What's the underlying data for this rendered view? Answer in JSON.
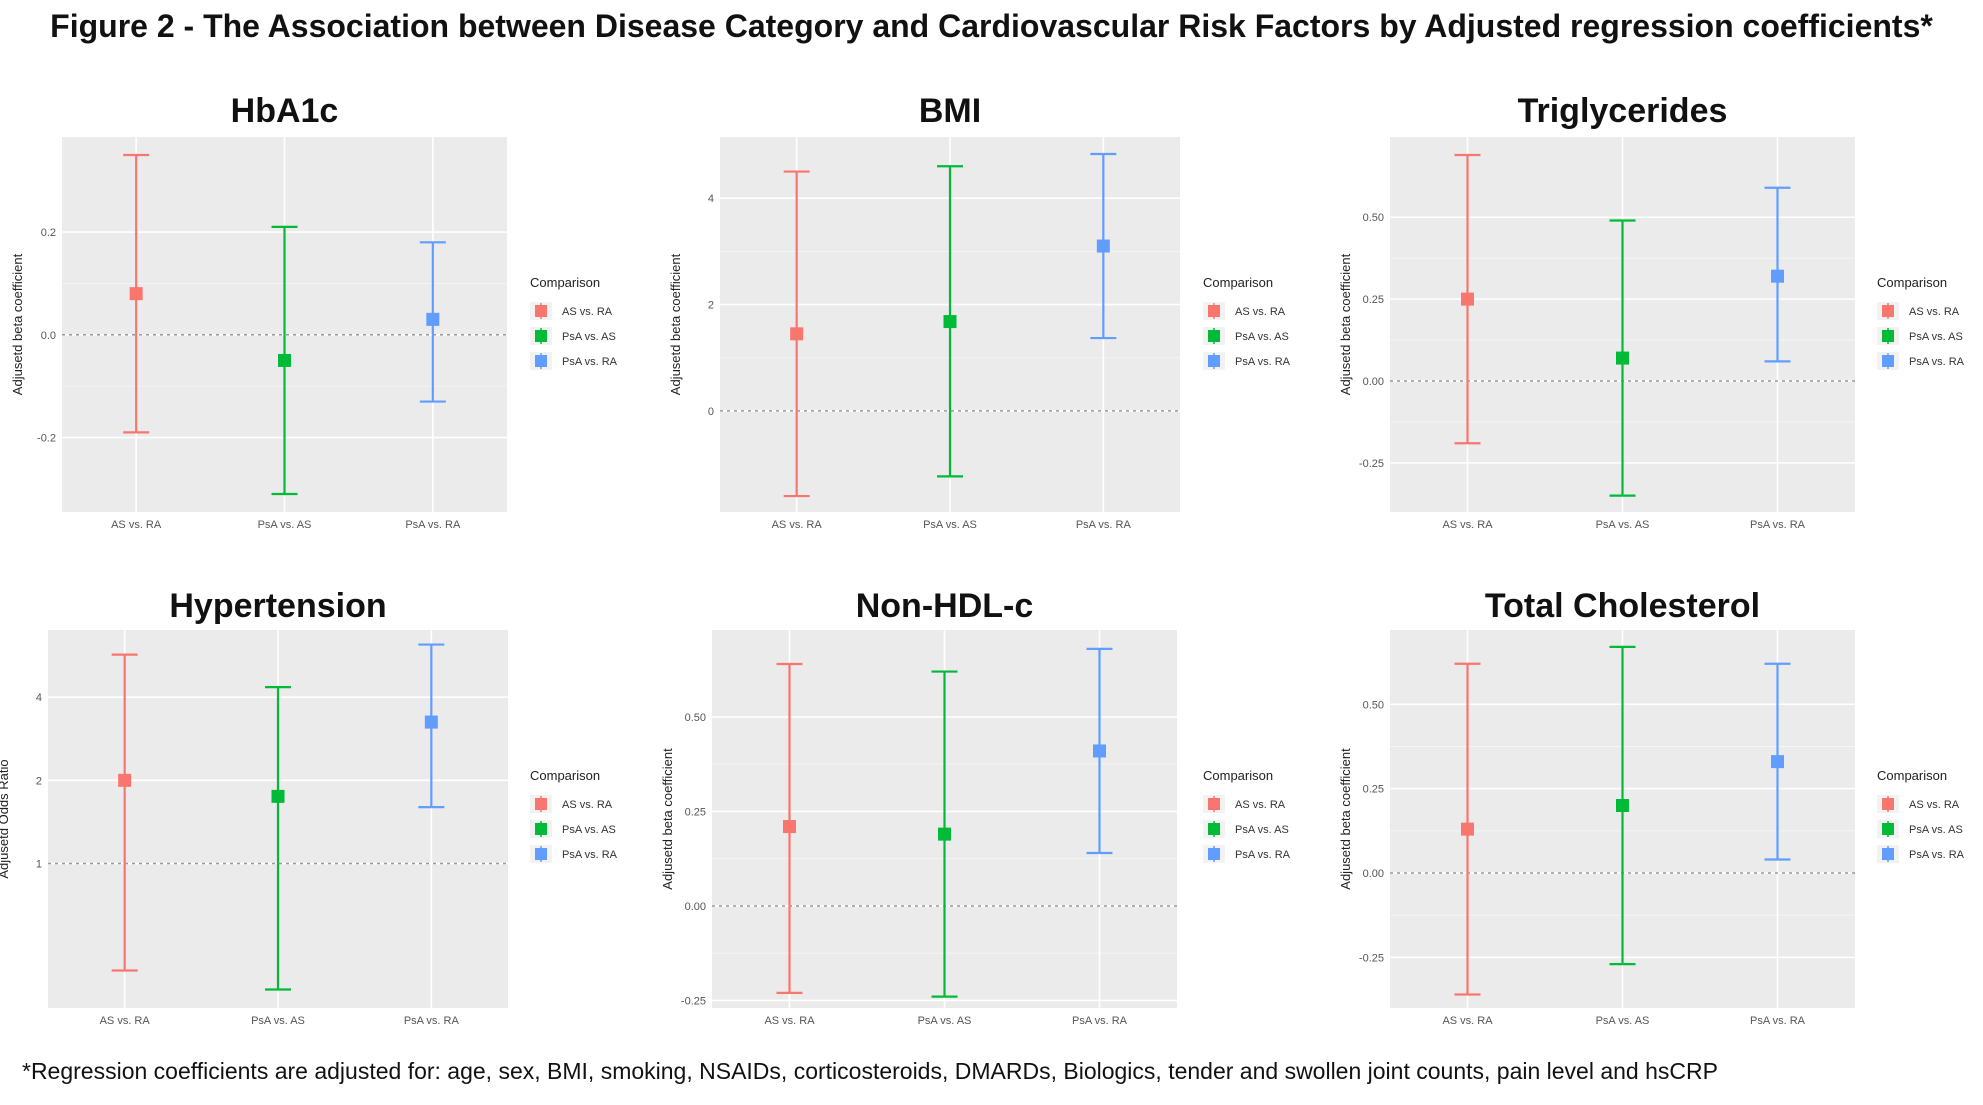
{
  "figure_title": "Figure 2 - The Association between Disease Category and Cardiovascular Risk Factors by Adjusted regression coefficients*",
  "footnote": "*Regression coefficients are adjusted for: age, sex, BMI, smoking, NSAIDs, corticosteroids, DMARDs, Biologics, tender and swollen joint counts, pain level and hsCRP",
  "colors": {
    "panel_bg": "#EBEBEB",
    "grid": "#FFFFFF",
    "reference_line": "#999999",
    "AS vs. RA": "#F8766D",
    "PsA vs. AS": "#00BA38",
    "PsA vs. RA": "#619CFF"
  },
  "chart_data": [
    {
      "type": "errorbar",
      "title": "HbA1c",
      "ylabel": "Adjusetd beta coefficient",
      "legend_title": "Comparison",
      "legend_position": "right",
      "categories": [
        "AS vs. RA",
        "PsA vs. AS",
        "PsA vs. RA"
      ],
      "estimate": [
        0.08,
        -0.05,
        0.03
      ],
      "lower": [
        -0.19,
        -0.31,
        -0.13
      ],
      "upper": [
        0.35,
        0.21,
        0.18
      ],
      "yticks": [
        -0.2,
        0.0,
        0.2
      ],
      "ytick_labels": [
        "-0.2",
        "0.0",
        "0.2"
      ],
      "ylim": [
        -0.345,
        0.385
      ],
      "reference_line": 0
    },
    {
      "type": "errorbar",
      "title": "BMI",
      "ylabel": "Adjusetd beta coefficient",
      "legend_title": "Comparison",
      "legend_position": "right",
      "categories": [
        "AS vs. RA",
        "PsA vs. AS",
        "PsA vs. RA"
      ],
      "estimate": [
        1.45,
        1.68,
        3.1
      ],
      "lower": [
        -1.6,
        -1.23,
        1.37
      ],
      "upper": [
        4.5,
        4.6,
        4.83
      ],
      "yticks": [
        0,
        2,
        4
      ],
      "ytick_labels": [
        "0",
        "2",
        "4"
      ],
      "ylim": [
        -1.9,
        5.15
      ],
      "reference_line": 0
    },
    {
      "type": "errorbar",
      "title": "Triglycerides",
      "ylabel": "Adjusetd beta coefficient",
      "legend_title": "Comparison",
      "legend_position": "right",
      "categories": [
        "AS vs. RA",
        "PsA vs. AS",
        "PsA vs. RA"
      ],
      "estimate": [
        0.25,
        0.07,
        0.32
      ],
      "lower": [
        -0.19,
        -0.35,
        0.06
      ],
      "upper": [
        0.69,
        0.49,
        0.59
      ],
      "yticks": [
        -0.25,
        0.0,
        0.25,
        0.5
      ],
      "ytick_labels": [
        "-0.25",
        "0.00",
        "0.25",
        "0.50"
      ],
      "ylim": [
        -0.4,
        0.745
      ],
      "reference_line": 0
    },
    {
      "type": "errorbar",
      "title": "Hypertension",
      "ylabel": "Adjusetd Odds Ratio",
      "legend_title": "Comparison",
      "legend_position": "right",
      "y_scale": "log",
      "categories": [
        "AS vs. RA",
        "PsA vs. AS",
        "PsA vs. RA"
      ],
      "estimate": [
        2.0,
        1.75,
        3.25
      ],
      "lower": [
        0.41,
        0.35,
        1.6
      ],
      "upper": [
        5.7,
        4.35,
        6.2
      ],
      "yticks": [
        1,
        2,
        4
      ],
      "ytick_labels": [
        "1",
        "2",
        "4"
      ],
      "ylim": [
        0.3,
        7.0
      ],
      "reference_line": 1
    },
    {
      "type": "errorbar",
      "title": "Non-HDL-c",
      "ylabel": "Adjusetd beta coefficient",
      "legend_title": "Comparison",
      "legend_position": "right",
      "categories": [
        "AS vs. RA",
        "PsA vs. AS",
        "PsA vs. RA"
      ],
      "estimate": [
        0.21,
        0.19,
        0.41
      ],
      "lower": [
        -0.23,
        -0.24,
        0.14
      ],
      "upper": [
        0.64,
        0.62,
        0.68
      ],
      "yticks": [
        -0.25,
        0.0,
        0.25,
        0.5
      ],
      "ytick_labels": [
        "-0.25",
        "0.00",
        "0.25",
        "0.50"
      ],
      "ylim": [
        -0.27,
        0.73
      ],
      "reference_line": 0
    },
    {
      "type": "errorbar",
      "title": "Total Cholesterol",
      "ylabel": "Adjusetd beta coefficient",
      "legend_title": "Comparison",
      "legend_position": "right",
      "categories": [
        "AS vs. RA",
        "PsA vs. AS",
        "PsA vs. RA"
      ],
      "estimate": [
        0.13,
        0.2,
        0.33
      ],
      "lower": [
        -0.36,
        -0.27,
        0.04
      ],
      "upper": [
        0.62,
        0.67,
        0.62
      ],
      "yticks": [
        -0.25,
        0.0,
        0.25,
        0.5
      ],
      "ytick_labels": [
        "-0.25",
        "0.00",
        "0.25",
        "0.50"
      ],
      "ylim": [
        -0.4,
        0.72
      ],
      "reference_line": 0
    }
  ]
}
